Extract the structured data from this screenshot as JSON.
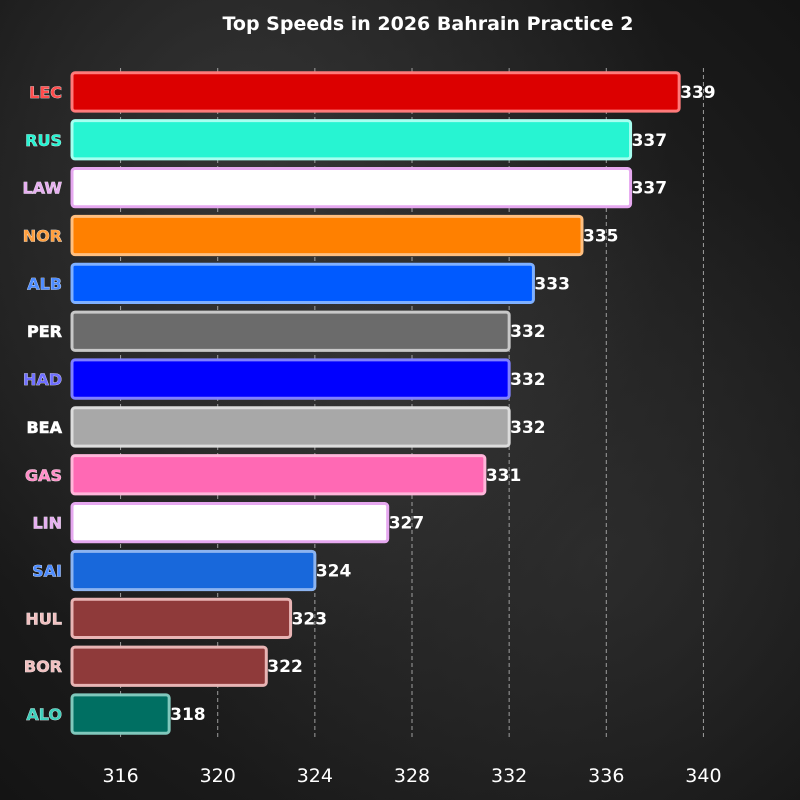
{
  "chart_data": {
    "type": "bar",
    "orientation": "horizontal",
    "title": "Top Speeds in 2026 Bahrain Practice 2",
    "xlabel": "",
    "ylabel": "",
    "xlim": [
      314,
      342
    ],
    "xticks": [
      316,
      320,
      324,
      328,
      332,
      336,
      340
    ],
    "grid": "vertical dashed",
    "categories": [
      "LEC",
      "RUS",
      "LAW",
      "NOR",
      "ALB",
      "PER",
      "HAD",
      "BEA",
      "GAS",
      "LIN",
      "SAI",
      "HUL",
      "BOR",
      "ALO"
    ],
    "values": [
      339,
      337,
      337,
      335,
      333,
      332,
      332,
      332,
      331,
      327,
      324,
      323,
      322,
      318
    ],
    "bar_colors": [
      "#dc0000",
      "#27f4d2",
      "#ffffff",
      "#ff8000",
      "#005aff",
      "#6b6b6b",
      "#0000ff",
      "#a8a8a8",
      "#ff69b4",
      "#ffffff",
      "#1868db",
      "#8f3a3a",
      "#8f3a3a",
      "#006f62"
    ],
    "edge_colors": [
      "#ff7a7a",
      "#a6fff0",
      "#e6a8f0",
      "#ffbf80",
      "#7fb0ff",
      "#c8c8c8",
      "#8080ff",
      "#dcdcdc",
      "#ffb6da",
      "#e6a8f0",
      "#8cb4f0",
      "#e8b4b4",
      "#e8b4b4",
      "#80c8bc"
    ],
    "label_colors": [
      "#ff4d4d",
      "#27f4d2",
      "#e6b0f0",
      "#ffa040",
      "#4d8cff",
      "#ffffff",
      "#6f6fff",
      "#ffffff",
      "#ff8fc8",
      "#e6b0f0",
      "#4d8cff",
      "#f0c0c0",
      "#f0c0c0",
      "#40d0bc"
    ]
  }
}
